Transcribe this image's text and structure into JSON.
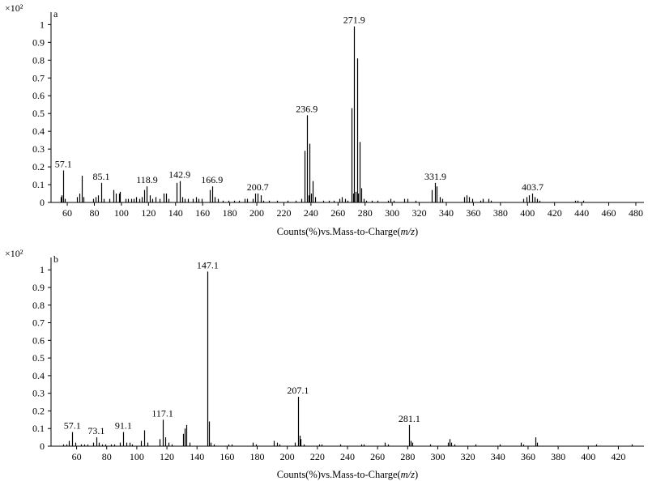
{
  "chart_data": [
    {
      "type": "bar",
      "panel_label": "a",
      "y_multiplier": "×10²",
      "xlabel_prefix": "Counts(%)vs.Mass-to-Charge(",
      "xlabel_italic": "m/z",
      "xlabel_suffix": ")",
      "xlim": [
        48,
        486
      ],
      "ylim": [
        0,
        1.07
      ],
      "x_ticks": [
        60,
        80,
        100,
        120,
        140,
        160,
        180,
        200,
        220,
        240,
        260,
        280,
        300,
        320,
        340,
        360,
        380,
        400,
        420,
        440,
        460,
        480
      ],
      "y_ticks": [
        0,
        0.1,
        0.2,
        0.3,
        0.4,
        0.5,
        0.6,
        0.7,
        0.8,
        0.9,
        1
      ],
      "y_tick_labels": [
        "0",
        "0.1",
        "0.2",
        "0.3",
        "0.4",
        "0.5",
        "0.6",
        "0.7",
        "0.8",
        "0.9",
        "1"
      ],
      "peak_labels": [
        "57.1",
        "85.1",
        "118.9",
        "142.9",
        "166.9",
        "200.7",
        "236.9",
        "271.9",
        "331.9",
        "403.7"
      ],
      "peaks": [
        [
          55,
          0.03
        ],
        [
          56,
          0.04
        ],
        [
          57.1,
          0.18
        ],
        [
          58,
          0.02
        ],
        [
          67,
          0.03
        ],
        [
          69,
          0.05
        ],
        [
          70.5,
          0.15
        ],
        [
          72,
          0.03
        ],
        [
          79,
          0.02
        ],
        [
          81,
          0.03
        ],
        [
          83,
          0.04
        ],
        [
          85.1,
          0.11
        ],
        [
          87,
          0.02
        ],
        [
          91,
          0.02
        ],
        [
          94,
          0.07
        ],
        [
          96,
          0.05
        ],
        [
          98,
          0.05
        ],
        [
          99,
          0.06
        ],
        [
          103,
          0.02
        ],
        [
          105,
          0.02
        ],
        [
          107,
          0.02
        ],
        [
          109,
          0.02
        ],
        [
          111,
          0.03
        ],
        [
          113,
          0.02
        ],
        [
          115,
          0.03
        ],
        [
          117,
          0.07
        ],
        [
          118.9,
          0.09
        ],
        [
          121,
          0.04
        ],
        [
          123,
          0.02
        ],
        [
          125,
          0.03
        ],
        [
          128,
          0.02
        ],
        [
          131,
          0.05
        ],
        [
          133,
          0.05
        ],
        [
          135,
          0.02
        ],
        [
          141,
          0.11
        ],
        [
          142.9,
          0.12
        ],
        [
          145,
          0.03
        ],
        [
          147,
          0.02
        ],
        [
          149,
          0.02
        ],
        [
          153,
          0.02
        ],
        [
          155,
          0.03
        ],
        [
          157,
          0.02
        ],
        [
          159,
          0.02
        ],
        [
          165,
          0.07
        ],
        [
          166.9,
          0.09
        ],
        [
          169,
          0.03
        ],
        [
          171,
          0.02
        ],
        [
          175,
          0.01
        ],
        [
          179,
          0.01
        ],
        [
          183,
          0.01
        ],
        [
          187,
          0.01
        ],
        [
          191,
          0.02
        ],
        [
          193,
          0.02
        ],
        [
          197,
          0.02
        ],
        [
          199,
          0.05
        ],
        [
          200.7,
          0.05
        ],
        [
          203,
          0.04
        ],
        [
          205,
          0.01
        ],
        [
          209,
          0.01
        ],
        [
          215,
          0.01
        ],
        [
          223,
          0.01
        ],
        [
          229,
          0.01
        ],
        [
          233,
          0.02
        ],
        [
          235,
          0.29
        ],
        [
          236.9,
          0.49
        ],
        [
          238,
          0.04
        ],
        [
          239,
          0.33
        ],
        [
          240,
          0.05
        ],
        [
          241,
          0.12
        ],
        [
          243,
          0.03
        ],
        [
          249,
          0.01
        ],
        [
          253,
          0.01
        ],
        [
          257,
          0.01
        ],
        [
          261,
          0.02
        ],
        [
          263,
          0.03
        ],
        [
          265,
          0.02
        ],
        [
          267,
          0.01
        ],
        [
          270,
          0.53
        ],
        [
          271,
          0.05
        ],
        [
          271.9,
          0.99
        ],
        [
          273,
          0.06
        ],
        [
          274,
          0.81
        ],
        [
          275,
          0.05
        ],
        [
          276,
          0.34
        ],
        [
          277,
          0.08
        ],
        [
          279,
          0.02
        ],
        [
          281,
          0.01
        ],
        [
          285,
          0.01
        ],
        [
          289,
          0.01
        ],
        [
          297,
          0.01
        ],
        [
          299,
          0.02
        ],
        [
          301,
          0.01
        ],
        [
          309,
          0.02
        ],
        [
          311,
          0.02
        ],
        [
          317,
          0.01
        ],
        [
          329,
          0.07
        ],
        [
          331.9,
          0.11
        ],
        [
          333,
          0.09
        ],
        [
          335,
          0.03
        ],
        [
          337,
          0.02
        ],
        [
          353,
          0.03
        ],
        [
          355,
          0.04
        ],
        [
          357,
          0.03
        ],
        [
          359,
          0.02
        ],
        [
          365,
          0.01
        ],
        [
          367,
          0.02
        ],
        [
          371,
          0.02
        ],
        [
          373,
          0.01
        ],
        [
          397,
          0.02
        ],
        [
          399,
          0.03
        ],
        [
          401,
          0.04
        ],
        [
          403.7,
          0.05
        ],
        [
          405,
          0.03
        ],
        [
          407,
          0.02
        ],
        [
          409,
          0.01
        ],
        [
          435,
          0.01
        ],
        [
          437,
          0.01
        ],
        [
          441,
          0.01
        ]
      ]
    },
    {
      "type": "bar",
      "panel_label": "b",
      "y_multiplier": "×10²",
      "xlabel_prefix": "Counts(%)vs.Mass-to-Charge(",
      "xlabel_italic": "m/z",
      "xlabel_suffix": ")",
      "xlim": [
        43,
        437
      ],
      "ylim": [
        0,
        1.07
      ],
      "x_ticks": [
        60,
        80,
        100,
        120,
        140,
        160,
        180,
        200,
        220,
        240,
        260,
        280,
        300,
        320,
        340,
        360,
        380,
        400,
        420
      ],
      "y_ticks": [
        0,
        0.1,
        0.2,
        0.3,
        0.4,
        0.5,
        0.6,
        0.7,
        0.8,
        0.9,
        1
      ],
      "y_tick_labels": [
        "0",
        "0.1",
        "0.2",
        "0.3",
        "0.4",
        "0.5",
        "0.6",
        "0.7",
        "0.8",
        "0.9",
        "1"
      ],
      "peak_labels": [
        "57.1",
        "73.1",
        "91.1",
        "117.1",
        "147.1",
        "207.1",
        "281.1"
      ],
      "peaks": [
        [
          51,
          0.01
        ],
        [
          53,
          0.01
        ],
        [
          55,
          0.03
        ],
        [
          57.1,
          0.08
        ],
        [
          59,
          0.02
        ],
        [
          63,
          0.01
        ],
        [
          65,
          0.01
        ],
        [
          67,
          0.01
        ],
        [
          71,
          0.02
        ],
        [
          73.1,
          0.05
        ],
        [
          75,
          0.02
        ],
        [
          77,
          0.01
        ],
        [
          79,
          0.01
        ],
        [
          83,
          0.01
        ],
        [
          85,
          0.01
        ],
        [
          89,
          0.02
        ],
        [
          91.1,
          0.08
        ],
        [
          93,
          0.02
        ],
        [
          95,
          0.02
        ],
        [
          97,
          0.01
        ],
        [
          103,
          0.03
        ],
        [
          105,
          0.09
        ],
        [
          107,
          0.02
        ],
        [
          115,
          0.04
        ],
        [
          117.1,
          0.15
        ],
        [
          119,
          0.05
        ],
        [
          121,
          0.02
        ],
        [
          123,
          0.01
        ],
        [
          131,
          0.07
        ],
        [
          132,
          0.1
        ],
        [
          133,
          0.12
        ],
        [
          135,
          0.02
        ],
        [
          147.1,
          0.99
        ],
        [
          148,
          0.14
        ],
        [
          149,
          0.02
        ],
        [
          151,
          0.01
        ],
        [
          161,
          0.01
        ],
        [
          163,
          0.01
        ],
        [
          177,
          0.02
        ],
        [
          179,
          0.01
        ],
        [
          191,
          0.03
        ],
        [
          193,
          0.02
        ],
        [
          195,
          0.01
        ],
        [
          205,
          0.02
        ],
        [
          207.1,
          0.28
        ],
        [
          208,
          0.06
        ],
        [
          209,
          0.04
        ],
        [
          211,
          0.01
        ],
        [
          221,
          0.01
        ],
        [
          223,
          0.01
        ],
        [
          235,
          0.01
        ],
        [
          249,
          0.01
        ],
        [
          251,
          0.01
        ],
        [
          265,
          0.02
        ],
        [
          267,
          0.01
        ],
        [
          281.1,
          0.12
        ],
        [
          282,
          0.03
        ],
        [
          283,
          0.02
        ],
        [
          295,
          0.01
        ],
        [
          307,
          0.02
        ],
        [
          308,
          0.04
        ],
        [
          309,
          0.02
        ],
        [
          311,
          0.01
        ],
        [
          325,
          0.01
        ],
        [
          341,
          0.01
        ],
        [
          355,
          0.02
        ],
        [
          357,
          0.01
        ],
        [
          365,
          0.05
        ],
        [
          366,
          0.02
        ],
        [
          405,
          0.01
        ],
        [
          429,
          0.01
        ]
      ]
    }
  ]
}
